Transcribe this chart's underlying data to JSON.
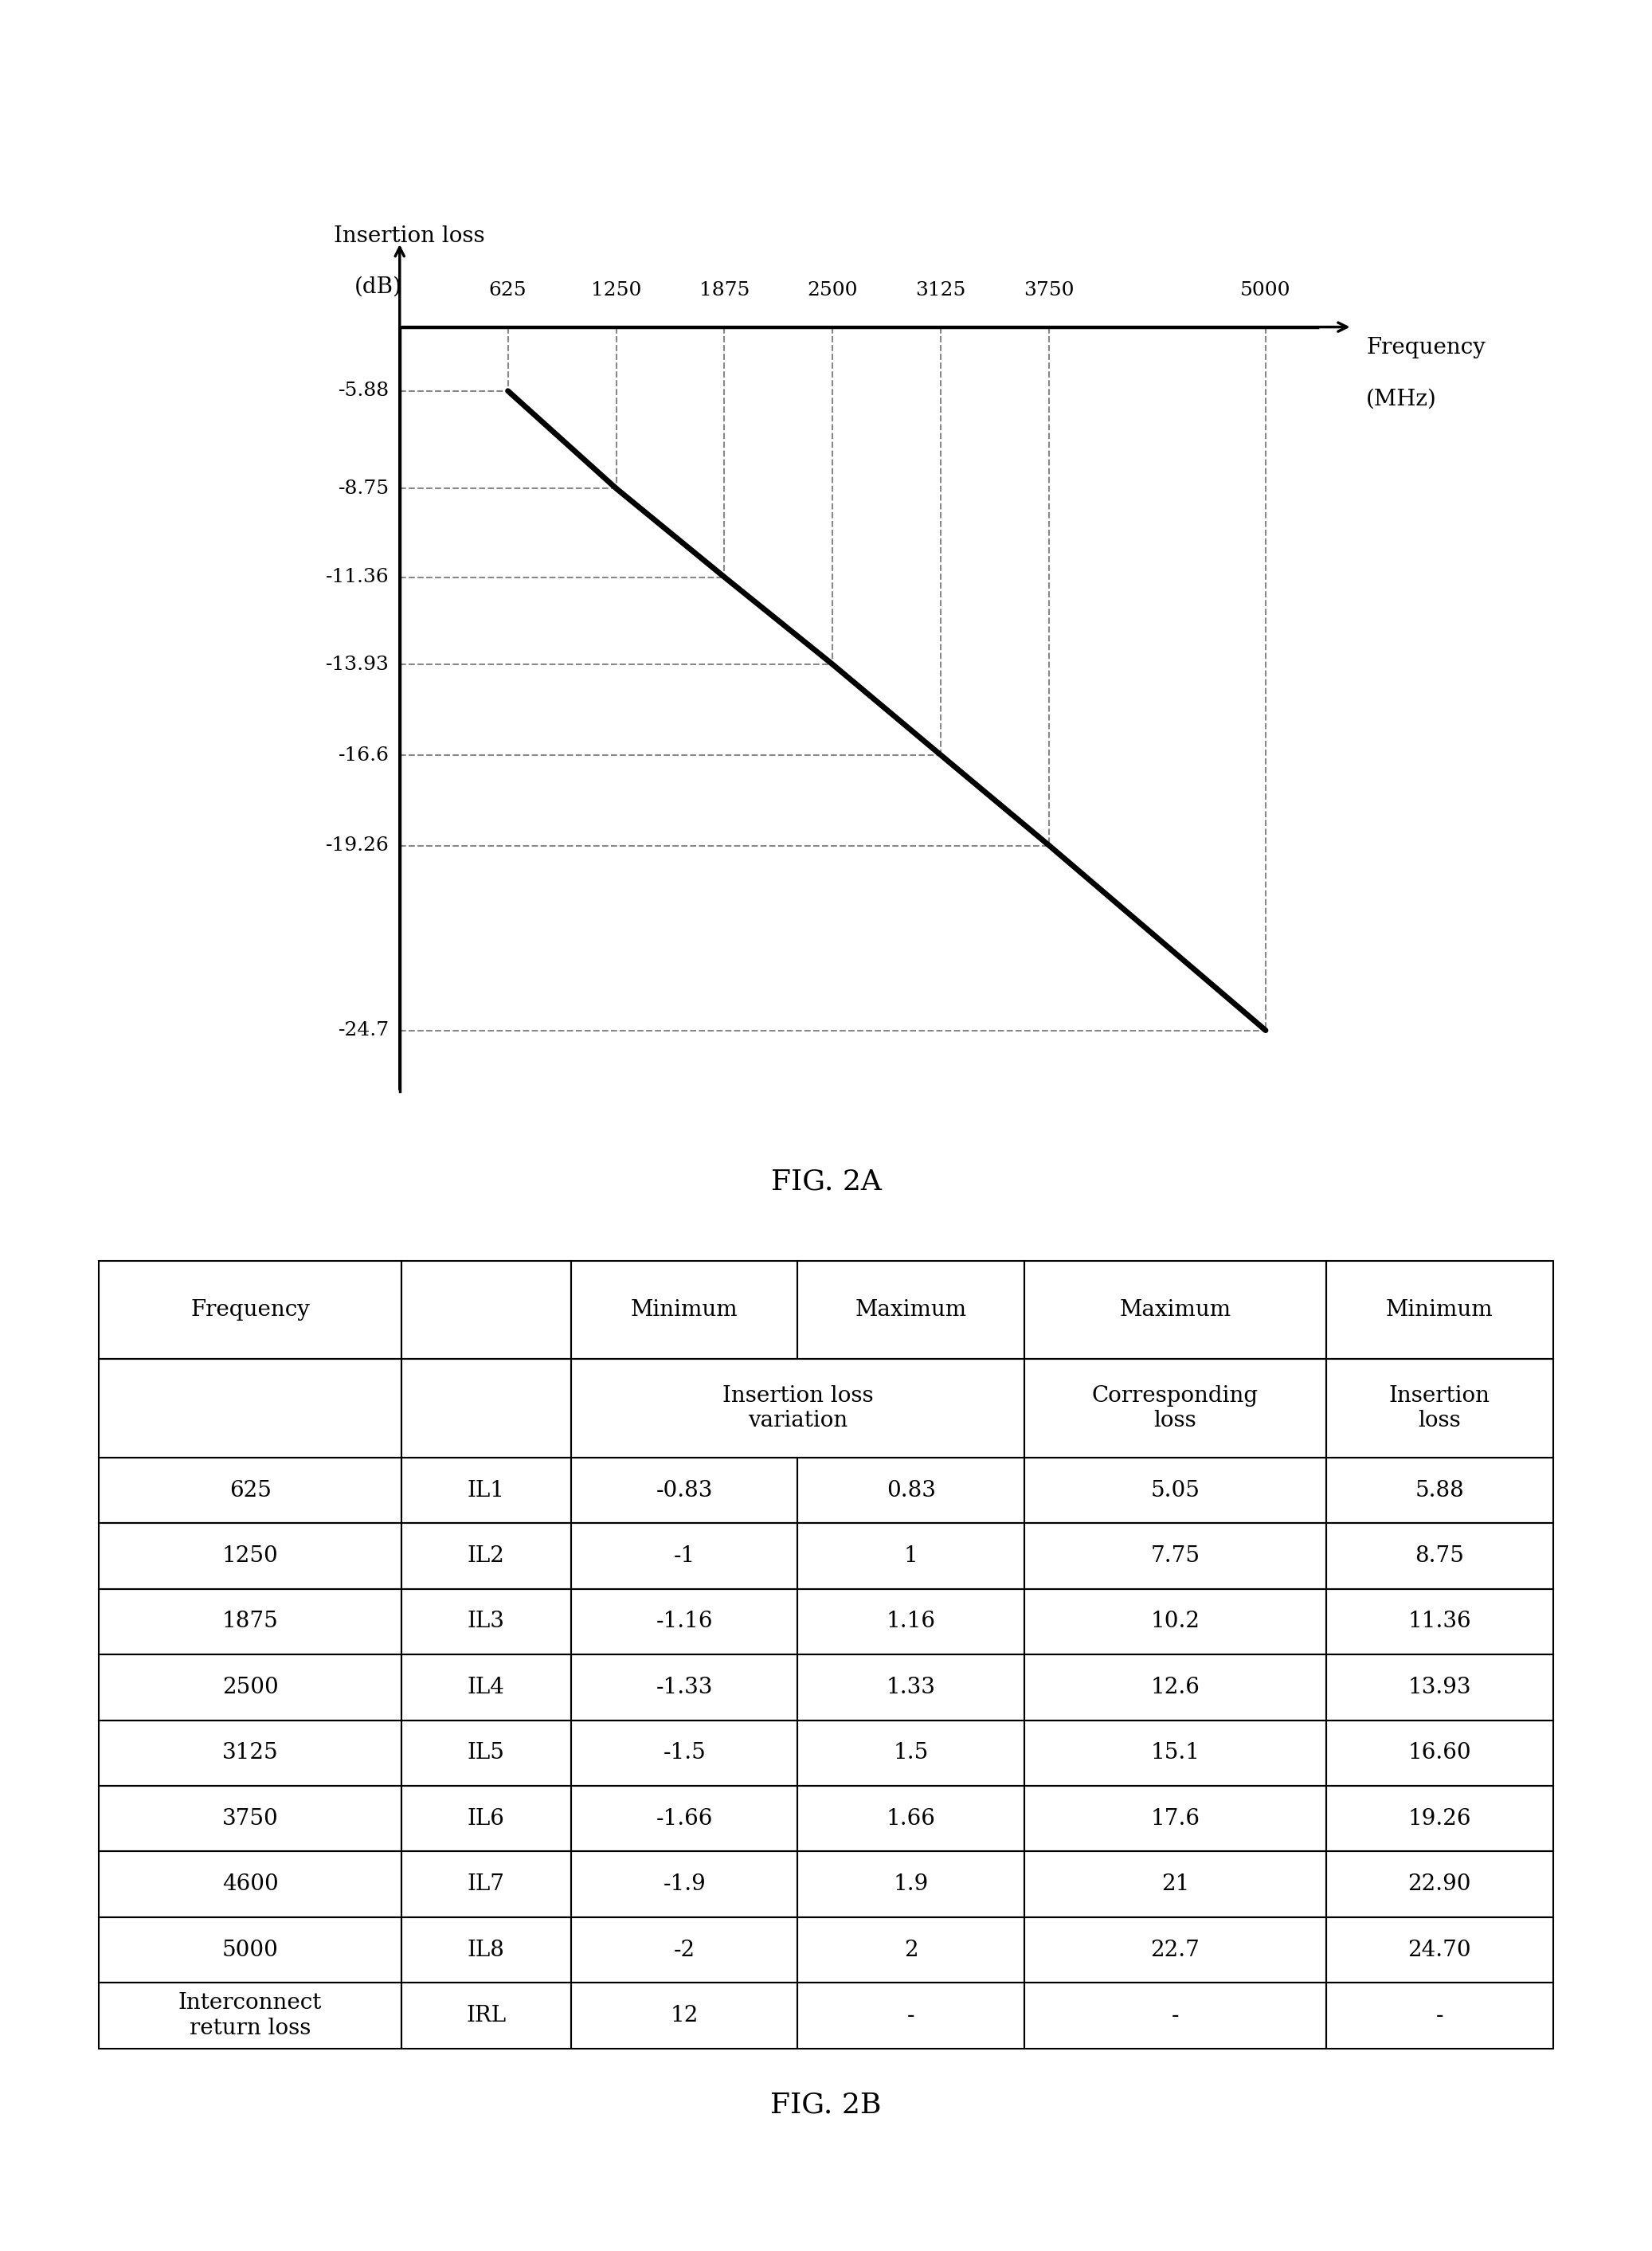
{
  "fig_width": 20.74,
  "fig_height": 28.26,
  "background_color": "#ffffff",
  "chart": {
    "title": "FIG. 2A",
    "ylabel_line1": "Insertion loss",
    "ylabel_line2": "(dB)",
    "xlabel_line1": "Frequency",
    "xlabel_line2": "(MHz)",
    "x_ticks": [
      625,
      1250,
      1875,
      2500,
      3125,
      3750,
      5000
    ],
    "y_ticks": [
      -5.88,
      -8.75,
      -11.36,
      -13.93,
      -16.6,
      -19.26,
      -24.7
    ],
    "line_x": [
      625,
      1250,
      1875,
      2500,
      3125,
      3750,
      5000
    ],
    "line_y": [
      -5.88,
      -8.75,
      -11.36,
      -13.93,
      -16.6,
      -19.26,
      -24.7
    ],
    "dashed_line_color": "#888888",
    "line_color": "#000000",
    "line_width": 5.0
  },
  "table": {
    "title": "FIG. 2B",
    "rows": [
      [
        "625",
        "IL1",
        "-0.83",
        "0.83",
        "5.05",
        "5.88"
      ],
      [
        "1250",
        "IL2",
        "-1",
        "1",
        "7.75",
        "8.75"
      ],
      [
        "1875",
        "IL3",
        "-1.16",
        "1.16",
        "10.2",
        "11.36"
      ],
      [
        "2500",
        "IL4",
        "-1.33",
        "1.33",
        "12.6",
        "13.93"
      ],
      [
        "3125",
        "IL5",
        "-1.5",
        "1.5",
        "15.1",
        "16.60"
      ],
      [
        "3750",
        "IL6",
        "-1.66",
        "1.66",
        "17.6",
        "19.26"
      ],
      [
        "4600",
        "IL7",
        "-1.9",
        "1.9",
        "21",
        "22.90"
      ],
      [
        "5000",
        "IL8",
        "-2",
        "2",
        "22.7",
        "24.70"
      ],
      [
        "Interconnect\nreturn loss",
        "IRL",
        "12",
        "-",
        "-",
        "-"
      ]
    ],
    "col_widths": [
      1.6,
      0.9,
      1.2,
      1.2,
      1.6,
      1.2
    ],
    "font_size": 20
  }
}
